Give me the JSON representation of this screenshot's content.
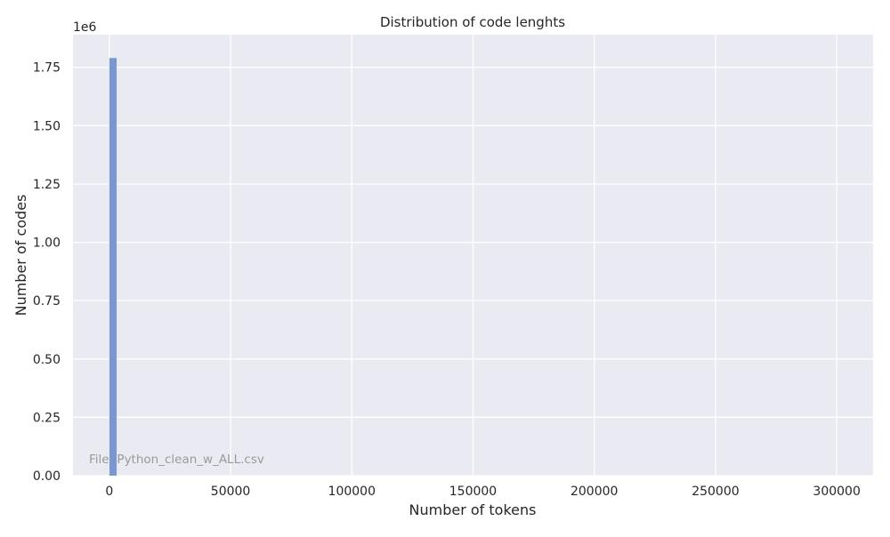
{
  "chart_data": {
    "type": "bar",
    "title": "Distribution of code lenghts",
    "xlabel": "Number of tokens",
    "ylabel": "Number of codes",
    "y_offset_label": "1e6",
    "annotation": "File: Python_clean_w_ALL.csv",
    "xlim": [
      -15000,
      315000
    ],
    "ylim": [
      0,
      1.89
    ],
    "x_ticks": [
      0,
      50000,
      100000,
      150000,
      200000,
      250000,
      300000
    ],
    "x_tick_labels": [
      "0",
      "50000",
      "100000",
      "150000",
      "200000",
      "250000",
      "300000"
    ],
    "y_ticks": [
      0,
      0.25,
      0.5,
      0.75,
      1.0,
      1.25,
      1.5,
      1.75
    ],
    "y_tick_labels": [
      "0.00",
      "0.25",
      "0.50",
      "0.75",
      "1.00",
      "1.25",
      "1.50",
      "1.75"
    ],
    "bins": [
      {
        "x_start": 0,
        "x_end": 3000,
        "value": 1.79
      }
    ],
    "grid": true,
    "colors": {
      "bar": "#7b97d1",
      "plot_background": "#eaeaf2",
      "grid": "#ffffff",
      "annotation": "#9a9a9a"
    }
  }
}
